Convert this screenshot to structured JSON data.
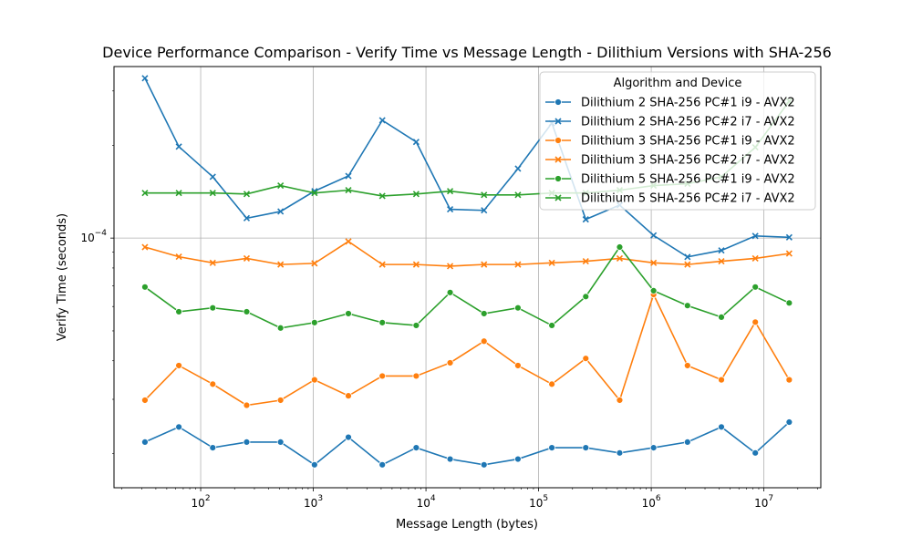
{
  "chart_data": {
    "type": "line",
    "title": "Device Performance Comparison - Verify Time vs Message Length - Dilithium Versions with SHA-256",
    "xlabel": "Message Length (bytes)",
    "ylabel": "Verify Time (seconds)",
    "xscale": "log",
    "yscale": "log",
    "xlim": [
      17,
      32000000
    ],
    "ylim": [
      1.55e-05,
      0.00036
    ],
    "grid": true,
    "legend_title": "Algorithm and Device",
    "legend_position": "top-right",
    "x_tick_labels": [
      {
        "value": 100,
        "base": "10",
        "exp": "2"
      },
      {
        "value": 1000,
        "base": "10",
        "exp": "3"
      },
      {
        "value": 10000,
        "base": "10",
        "exp": "4"
      },
      {
        "value": 100000,
        "base": "10",
        "exp": "5"
      },
      {
        "value": 1000000,
        "base": "10",
        "exp": "6"
      },
      {
        "value": 10000000,
        "base": "10",
        "exp": "7"
      }
    ],
    "y_tick_labels": [
      {
        "value": 0.0001,
        "base": "10",
        "exp": "−4"
      }
    ],
    "x": [
      32,
      64,
      128,
      256,
      512,
      1024,
      2048,
      4096,
      8192,
      16384,
      32768,
      65536,
      131072,
      262144,
      524288,
      1048576,
      2097152,
      4194304,
      8388608,
      16777216
    ],
    "series": [
      {
        "name": "Dilithium 2 SHA-256 PC#1 i9 - AVX2",
        "color": "#1f77b4",
        "marker": "circle",
        "values": [
          2.18e-05,
          2.44e-05,
          2.09e-05,
          2.18e-05,
          2.18e-05,
          1.84e-05,
          2.26e-05,
          1.84e-05,
          2.09e-05,
          1.92e-05,
          1.84e-05,
          1.92e-05,
          2.09e-05,
          2.09e-05,
          2.01e-05,
          2.09e-05,
          2.18e-05,
          2.44e-05,
          2.01e-05,
          2.53e-05
        ]
      },
      {
        "name": "Dilithium 2 SHA-256 PC#2 i7 - AVX2",
        "color": "#1f77b4",
        "marker": "x",
        "values": [
          0.00033,
          0.000198,
          0.000158,
          0.000116,
          0.000122,
          0.000142,
          0.000159,
          0.000241,
          0.000205,
          0.000124,
          0.000123,
          0.000168,
          0.000236,
          0.000115,
          0.000128,
          0.000102,
          8.69e-05,
          9.12e-05,
          0.0001016,
          0.0001006
        ]
      },
      {
        "name": "Dilithium 3 SHA-256 PC#1 i9 - AVX2",
        "color": "#ff7f0e",
        "marker": "circle",
        "values": [
          2.98e-05,
          3.86e-05,
          3.36e-05,
          2.87e-05,
          2.98e-05,
          3.47e-05,
          3.08e-05,
          3.57e-05,
          3.57e-05,
          3.94e-05,
          4.63e-05,
          3.86e-05,
          3.36e-05,
          4.07e-05,
          2.98e-05,
          6.56e-05,
          3.86e-05,
          3.47e-05,
          5.34e-05,
          3.47e-05
        ]
      },
      {
        "name": "Dilithium 3 SHA-256 PC#2 i7 - AVX2",
        "color": "#ff7f0e",
        "marker": "x",
        "values": [
          9.35e-05,
          8.7e-05,
          8.31e-05,
          8.59e-05,
          8.21e-05,
          8.28e-05,
          9.75e-05,
          8.21e-05,
          8.21e-05,
          8.11e-05,
          8.21e-05,
          8.21e-05,
          8.31e-05,
          8.41e-05,
          8.59e-05,
          8.31e-05,
          8.21e-05,
          8.41e-05,
          8.59e-05,
          8.91e-05
        ]
      },
      {
        "name": "Dilithium 5 SHA-256 PC#1 i9 - AVX2",
        "color": "#2ca02c",
        "marker": "circle",
        "values": [
          6.94e-05,
          5.77e-05,
          5.94e-05,
          5.77e-05,
          5.11e-05,
          5.32e-05,
          5.69e-05,
          5.32e-05,
          5.21e-05,
          6.66e-05,
          5.69e-05,
          5.94e-05,
          5.21e-05,
          6.46e-05,
          9.35e-05,
          6.75e-05,
          6.04e-05,
          5.54e-05,
          6.94e-05,
          6.16e-05
        ]
      },
      {
        "name": "Dilithium 5 SHA-256 PC#2 i7 - AVX2",
        "color": "#2ca02c",
        "marker": "x",
        "values": [
          0.00014,
          0.00014,
          0.00014,
          0.000139,
          0.000148,
          0.00014,
          0.000143,
          0.000137,
          0.000139,
          0.000142,
          0.000138,
          0.000138,
          0.00014,
          0.00014,
          0.000143,
          0.000148,
          0.00015,
          0.000158,
          0.000197,
          0.000278
        ]
      }
    ]
  }
}
